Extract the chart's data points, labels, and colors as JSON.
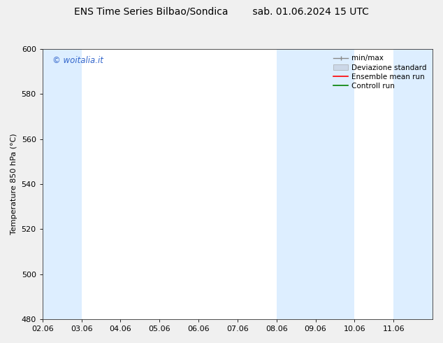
{
  "title_left": "ENS Time Series Bilbao/Sondica",
  "title_right": "sab. 01.06.2024 15 UTC",
  "ylabel": "Temperature 850 hPa (°C)",
  "xlim_left": 0,
  "xlim_right": 10,
  "ylim_bottom": 480,
  "ylim_top": 600,
  "yticks": [
    480,
    500,
    520,
    540,
    560,
    580,
    600
  ],
  "xtick_labels": [
    "02.06",
    "03.06",
    "04.06",
    "05.06",
    "06.06",
    "07.06",
    "08.06",
    "09.06",
    "10.06",
    "11.06"
  ],
  "xtick_positions": [
    0,
    1,
    2,
    3,
    4,
    5,
    6,
    7,
    8,
    9
  ],
  "shaded_bands": [
    {
      "x_start": 0,
      "x_end": 1,
      "color": "#ddeeff"
    },
    {
      "x_start": 6,
      "x_end": 8,
      "color": "#ddeeff"
    },
    {
      "x_start": 9,
      "x_end": 10,
      "color": "#ddeeff"
    }
  ],
  "legend_items": [
    {
      "label": "min/max",
      "color": "#aaaaaa",
      "style": "errorbar"
    },
    {
      "label": "Deviazione standard",
      "color": "#ccddee",
      "style": "fillbar"
    },
    {
      "label": "Ensemble mean run",
      "color": "red",
      "style": "line"
    },
    {
      "label": "Controll run",
      "color": "green",
      "style": "line"
    }
  ],
  "watermark_text": "© woitalia.it",
  "watermark_color": "#3366cc",
  "background_color": "#f0f0f0",
  "plot_bg_color": "#ffffff",
  "title_fontsize": 10,
  "axis_fontsize": 8,
  "tick_fontsize": 8,
  "legend_fontsize": 7.5
}
